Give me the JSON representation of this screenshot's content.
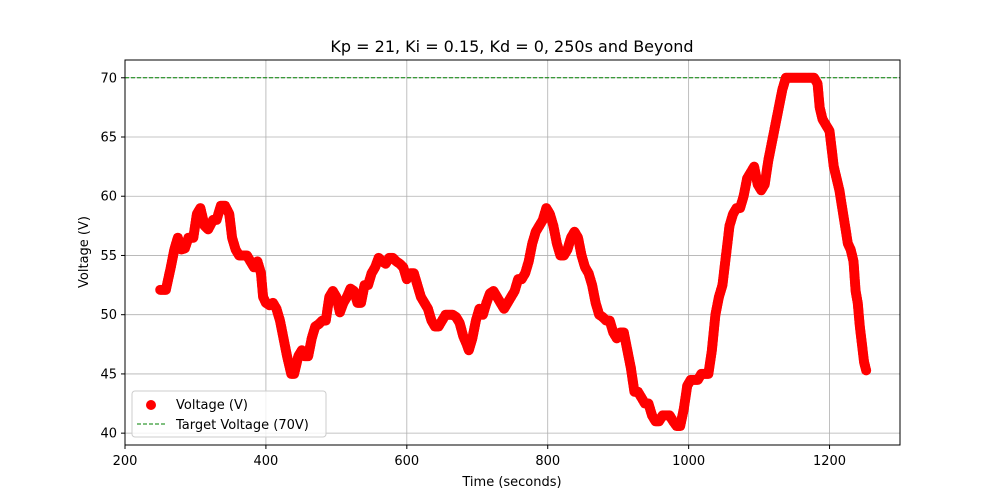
{
  "chart_data": {
    "type": "scatter",
    "title": "Kp = 21, Ki = 0.15, Kd = 0, 250s and Beyond",
    "xlabel": "Time (seconds)",
    "ylabel": "Voltage (V)",
    "xlim": [
      200,
      1300
    ],
    "ylim": [
      39,
      71.5
    ],
    "xticks": [
      200,
      400,
      600,
      800,
      1000,
      1200
    ],
    "yticks": [
      40,
      45,
      50,
      55,
      60,
      65,
      70
    ],
    "grid": true,
    "legend_position": "lower-left",
    "series": [
      {
        "name": "Voltage (V)",
        "kind": "scatter",
        "color": "#ff0000",
        "points": [
          [
            250,
            52.1
          ],
          [
            258,
            52.1
          ],
          [
            265,
            54
          ],
          [
            270,
            55.5
          ],
          [
            275,
            56.5
          ],
          [
            280,
            55.5
          ],
          [
            285,
            55.6
          ],
          [
            290,
            56.5
          ],
          [
            297,
            56.5
          ],
          [
            302,
            58.5
          ],
          [
            307,
            59
          ],
          [
            313,
            57.5
          ],
          [
            318,
            57.2
          ],
          [
            325,
            58
          ],
          [
            330,
            58
          ],
          [
            336,
            59.2
          ],
          [
            342,
            59.2
          ],
          [
            348,
            58.5
          ],
          [
            352,
            56.5
          ],
          [
            357,
            55.5
          ],
          [
            362,
            55
          ],
          [
            367,
            55
          ],
          [
            373,
            55
          ],
          [
            378,
            54.5
          ],
          [
            383,
            54
          ],
          [
            388,
            54.5
          ],
          [
            393,
            53.5
          ],
          [
            396,
            51.5
          ],
          [
            400,
            51
          ],
          [
            405,
            50.8
          ],
          [
            410,
            51
          ],
          [
            415,
            50.5
          ],
          [
            420,
            49.5
          ],
          [
            425,
            48
          ],
          [
            430,
            46.5
          ],
          [
            436,
            45
          ],
          [
            440,
            45
          ],
          [
            446,
            46.5
          ],
          [
            451,
            47
          ],
          [
            455,
            46.5
          ],
          [
            460,
            46.5
          ],
          [
            465,
            48
          ],
          [
            470,
            49
          ],
          [
            475,
            49.2
          ],
          [
            480,
            49.5
          ],
          [
            485,
            49.5
          ],
          [
            490,
            51.5
          ],
          [
            495,
            52
          ],
          [
            500,
            51.5
          ],
          [
            505,
            50.2
          ],
          [
            510,
            51
          ],
          [
            515,
            51.5
          ],
          [
            520,
            52.2
          ],
          [
            525,
            52
          ],
          [
            530,
            51
          ],
          [
            535,
            51
          ],
          [
            540,
            52.5
          ],
          [
            545,
            52.5
          ],
          [
            550,
            53.5
          ],
          [
            555,
            54
          ],
          [
            560,
            54.8
          ],
          [
            565,
            54.5
          ],
          [
            570,
            54.3
          ],
          [
            575,
            54.8
          ],
          [
            580,
            54.8
          ],
          [
            585,
            54.5
          ],
          [
            590,
            54.3
          ],
          [
            595,
            54
          ],
          [
            600,
            53
          ],
          [
            605,
            53.5
          ],
          [
            610,
            53.5
          ],
          [
            615,
            52.5
          ],
          [
            620,
            51.5
          ],
          [
            625,
            51
          ],
          [
            630,
            50.5
          ],
          [
            635,
            49.5
          ],
          [
            640,
            49
          ],
          [
            645,
            49
          ],
          [
            650,
            49.5
          ],
          [
            655,
            50
          ],
          [
            660,
            50
          ],
          [
            665,
            50
          ],
          [
            670,
            49.8
          ],
          [
            675,
            49.3
          ],
          [
            680,
            48.2
          ],
          [
            685,
            47.5
          ],
          [
            688,
            47
          ],
          [
            693,
            48
          ],
          [
            698,
            49.5
          ],
          [
            703,
            50.5
          ],
          [
            708,
            50
          ],
          [
            713,
            51
          ],
          [
            718,
            51.8
          ],
          [
            723,
            52
          ],
          [
            728,
            51.5
          ],
          [
            733,
            51
          ],
          [
            738,
            50.5
          ],
          [
            743,
            51
          ],
          [
            748,
            51.5
          ],
          [
            753,
            52
          ],
          [
            758,
            53
          ],
          [
            763,
            53
          ],
          [
            768,
            53.5
          ],
          [
            773,
            54.5
          ],
          [
            778,
            56
          ],
          [
            783,
            57
          ],
          [
            788,
            57.5
          ],
          [
            793,
            58
          ],
          [
            798,
            59
          ],
          [
            803,
            58.5
          ],
          [
            808,
            57.5
          ],
          [
            813,
            56
          ],
          [
            818,
            55
          ],
          [
            823,
            55
          ],
          [
            828,
            55.5
          ],
          [
            833,
            56.5
          ],
          [
            838,
            57
          ],
          [
            843,
            56.5
          ],
          [
            848,
            55
          ],
          [
            853,
            54
          ],
          [
            858,
            53.5
          ],
          [
            863,
            52.5
          ],
          [
            868,
            51
          ],
          [
            873,
            50
          ],
          [
            878,
            49.8
          ],
          [
            883,
            49.5
          ],
          [
            888,
            49.5
          ],
          [
            893,
            48.5
          ],
          [
            898,
            48
          ],
          [
            903,
            48.5
          ],
          [
            908,
            48.5
          ],
          [
            913,
            47
          ],
          [
            918,
            45.5
          ],
          [
            923,
            43.5
          ],
          [
            928,
            43.5
          ],
          [
            933,
            43
          ],
          [
            938,
            42.5
          ],
          [
            943,
            42.5
          ],
          [
            948,
            41.5
          ],
          [
            953,
            41
          ],
          [
            958,
            41
          ],
          [
            963,
            41.5
          ],
          [
            968,
            41.5
          ],
          [
            973,
            41.5
          ],
          [
            978,
            41
          ],
          [
            983,
            40.6
          ],
          [
            988,
            40.6
          ],
          [
            993,
            42
          ],
          [
            998,
            44
          ],
          [
            1003,
            44.5
          ],
          [
            1008,
            44.5
          ],
          [
            1013,
            44.5
          ],
          [
            1018,
            45
          ],
          [
            1023,
            45
          ],
          [
            1028,
            45
          ],
          [
            1033,
            47
          ],
          [
            1038,
            50
          ],
          [
            1043,
            51.5
          ],
          [
            1048,
            52.5
          ],
          [
            1053,
            55
          ],
          [
            1058,
            57.5
          ],
          [
            1063,
            58.5
          ],
          [
            1068,
            59
          ],
          [
            1073,
            59
          ],
          [
            1078,
            60
          ],
          [
            1083,
            61.5
          ],
          [
            1088,
            62
          ],
          [
            1093,
            62.5
          ],
          [
            1098,
            61
          ],
          [
            1103,
            60.5
          ],
          [
            1108,
            61
          ],
          [
            1113,
            63
          ],
          [
            1118,
            64.5
          ],
          [
            1123,
            66
          ],
          [
            1128,
            67.5
          ],
          [
            1133,
            69
          ],
          [
            1138,
            70
          ],
          [
            1143,
            70
          ],
          [
            1148,
            70
          ],
          [
            1153,
            70
          ],
          [
            1158,
            70
          ],
          [
            1163,
            70
          ],
          [
            1168,
            70
          ],
          [
            1173,
            70
          ],
          [
            1178,
            70
          ],
          [
            1183,
            69.5
          ],
          [
            1186,
            67.5
          ],
          [
            1190,
            66.5
          ],
          [
            1195,
            66
          ],
          [
            1200,
            65.5
          ],
          [
            1203,
            64
          ],
          [
            1206,
            62.5
          ],
          [
            1210,
            61.5
          ],
          [
            1214,
            60.5
          ],
          [
            1218,
            59
          ],
          [
            1222,
            57.5
          ],
          [
            1226,
            56
          ],
          [
            1230,
            55.5
          ],
          [
            1234,
            54.5
          ],
          [
            1237,
            52
          ],
          [
            1240,
            51
          ],
          [
            1243,
            49
          ],
          [
            1246,
            47.5
          ],
          [
            1249,
            46
          ],
          [
            1252,
            45.3
          ]
        ]
      },
      {
        "name": "Target Voltage (70V)",
        "kind": "hline",
        "y": 70,
        "color": "#008000",
        "linestyle": "dashed"
      }
    ]
  }
}
